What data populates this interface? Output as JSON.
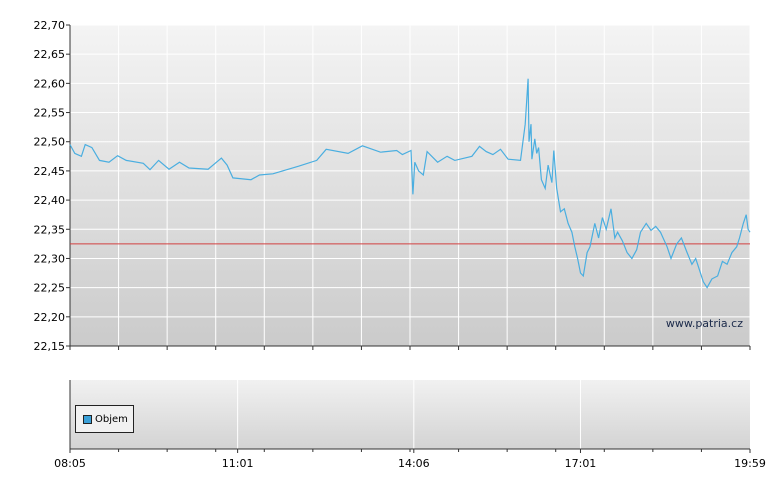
{
  "chart_data": {
    "type": "line",
    "title": "",
    "xlabel": "",
    "ylabel": "",
    "ylim": [
      22.15,
      22.7
    ],
    "yticks": [
      "22,15",
      "22,20",
      "22,25",
      "22,30",
      "22,35",
      "22,40",
      "22,45",
      "22,50",
      "22,55",
      "22,60",
      "22,65",
      "22,70"
    ],
    "xlim": [
      "08:05",
      "19:59"
    ],
    "xticks": [
      {
        "label": "08:05",
        "t": "08:05"
      },
      {
        "label": "11:01",
        "t": "11:01"
      },
      {
        "label": "14:06",
        "t": "14:06"
      },
      {
        "label": "17:01",
        "t": "17:01"
      },
      {
        "label": "19:59",
        "t": "19:59"
      }
    ],
    "reference_line": 22.325,
    "watermark": "www.patria.cz",
    "legend": [
      {
        "name": "Objem",
        "color": "#3aa0d8"
      }
    ],
    "series": [
      {
        "name": "",
        "color": "#4aaee0",
        "points": [
          [
            "08:05",
            22.495
          ],
          [
            "08:10",
            22.48
          ],
          [
            "08:17",
            22.475
          ],
          [
            "08:21",
            22.495
          ],
          [
            "08:28",
            22.49
          ],
          [
            "08:36",
            22.468
          ],
          [
            "08:46",
            22.465
          ],
          [
            "08:55",
            22.476
          ],
          [
            "09:04",
            22.468
          ],
          [
            "09:22",
            22.463
          ],
          [
            "09:29",
            22.452
          ],
          [
            "09:38",
            22.468
          ],
          [
            "09:49",
            22.453
          ],
          [
            "10:00",
            22.465
          ],
          [
            "10:10",
            22.455
          ],
          [
            "10:30",
            22.453
          ],
          [
            "10:44",
            22.472
          ],
          [
            "10:50",
            22.46
          ],
          [
            "10:56",
            22.438
          ],
          [
            "11:15",
            22.435
          ],
          [
            "11:24",
            22.443
          ],
          [
            "11:38",
            22.445
          ],
          [
            "12:05",
            22.458
          ],
          [
            "12:24",
            22.468
          ],
          [
            "12:34",
            22.487
          ],
          [
            "12:57",
            22.48
          ],
          [
            "13:12",
            22.493
          ],
          [
            "13:31",
            22.482
          ],
          [
            "13:48",
            22.485
          ],
          [
            "13:54",
            22.478
          ],
          [
            "14:03",
            22.485
          ],
          [
            "14:05",
            22.41
          ],
          [
            "14:07",
            22.465
          ],
          [
            "14:11",
            22.45
          ],
          [
            "14:16",
            22.443
          ],
          [
            "14:20",
            22.483
          ],
          [
            "14:31",
            22.465
          ],
          [
            "14:41",
            22.475
          ],
          [
            "14:49",
            22.468
          ],
          [
            "15:07",
            22.475
          ],
          [
            "15:15",
            22.492
          ],
          [
            "15:22",
            22.483
          ],
          [
            "15:29",
            22.478
          ],
          [
            "15:37",
            22.487
          ],
          [
            "15:45",
            22.47
          ],
          [
            "15:58",
            22.468
          ],
          [
            "16:03",
            22.53
          ],
          [
            "16:06",
            22.608
          ],
          [
            "16:07",
            22.5
          ],
          [
            "16:09",
            22.53
          ],
          [
            "16:10",
            22.47
          ],
          [
            "16:13",
            22.505
          ],
          [
            "16:15",
            22.48
          ],
          [
            "16:17",
            22.49
          ],
          [
            "16:20",
            22.435
          ],
          [
            "16:24",
            22.42
          ],
          [
            "16:27",
            22.46
          ],
          [
            "16:31",
            22.43
          ],
          [
            "16:33",
            22.485
          ],
          [
            "16:36",
            22.42
          ],
          [
            "16:40",
            22.38
          ],
          [
            "16:44",
            22.385
          ],
          [
            "16:48",
            22.36
          ],
          [
            "16:52",
            22.345
          ],
          [
            "16:55",
            22.32
          ],
          [
            "16:58",
            22.3
          ],
          [
            "17:01",
            22.275
          ],
          [
            "17:04",
            22.27
          ],
          [
            "17:08",
            22.31
          ],
          [
            "17:11",
            22.32
          ],
          [
            "17:16",
            22.36
          ],
          [
            "17:20",
            22.335
          ],
          [
            "17:24",
            22.37
          ],
          [
            "17:28",
            22.35
          ],
          [
            "17:33",
            22.385
          ],
          [
            "17:37",
            22.335
          ],
          [
            "17:40",
            22.345
          ],
          [
            "17:45",
            22.33
          ],
          [
            "17:50",
            22.31
          ],
          [
            "17:55",
            22.3
          ],
          [
            "18:00",
            22.315
          ],
          [
            "18:04",
            22.345
          ],
          [
            "18:10",
            22.36
          ],
          [
            "18:15",
            22.348
          ],
          [
            "18:20",
            22.355
          ],
          [
            "18:25",
            22.345
          ],
          [
            "18:32",
            22.32
          ],
          [
            "18:36",
            22.3
          ],
          [
            "18:42",
            22.325
          ],
          [
            "18:47",
            22.335
          ],
          [
            "18:53",
            22.31
          ],
          [
            "18:58",
            22.29
          ],
          [
            "19:02",
            22.3
          ],
          [
            "19:06",
            22.28
          ],
          [
            "19:10",
            22.26
          ],
          [
            "19:14",
            22.25
          ],
          [
            "19:19",
            22.265
          ],
          [
            "19:25",
            22.27
          ],
          [
            "19:30",
            22.295
          ],
          [
            "19:35",
            22.29
          ],
          [
            "19:40",
            22.31
          ],
          [
            "19:45",
            22.32
          ],
          [
            "19:48",
            22.335
          ],
          [
            "19:52",
            22.36
          ],
          [
            "19:55",
            22.375
          ],
          [
            "19:57",
            22.35
          ],
          [
            "19:59",
            22.345
          ]
        ]
      }
    ]
  }
}
